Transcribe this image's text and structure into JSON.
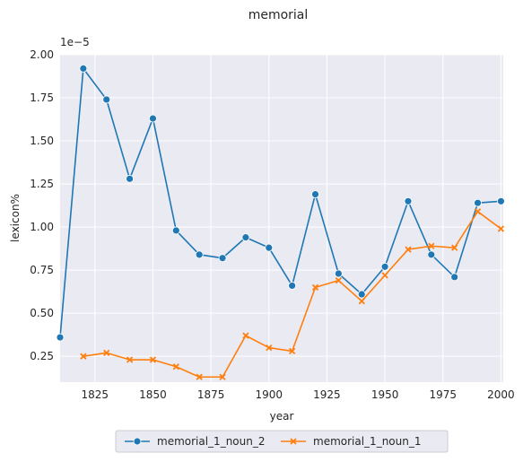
{
  "chart_data": {
    "type": "line",
    "title": "memorial",
    "xlabel": "year",
    "ylabel": "lexicon%",
    "y_offset_text": "1e−5",
    "xlim": [
      1810,
      2001
    ],
    "ylim": [
      0.1,
      2.0
    ],
    "x_ticks": [
      1825,
      1850,
      1875,
      1900,
      1925,
      1950,
      1975,
      2000
    ],
    "y_ticks": [
      0.25,
      0.5,
      0.75,
      1.0,
      1.25,
      1.5,
      1.75,
      2.0
    ],
    "x_tick_labels": [
      "1825",
      "1850",
      "1875",
      "1900",
      "1925",
      "1950",
      "1975",
      "2000"
    ],
    "y_tick_labels": [
      "0.25",
      "0.50",
      "0.75",
      "1.00",
      "1.25",
      "1.50",
      "1.75",
      "2.00"
    ],
    "grid": true,
    "legend_position": "bottom-center",
    "background": "#eaeaf2",
    "series": [
      {
        "name": "memorial_1_noun_2",
        "color": "#1f77b4",
        "marker": "circle",
        "x": [
          1810,
          1820,
          1830,
          1840,
          1850,
          1860,
          1870,
          1880,
          1890,
          1900,
          1910,
          1920,
          1930,
          1940,
          1950,
          1960,
          1970,
          1980,
          1990,
          2000
        ],
        "y": [
          0.36,
          1.92,
          1.74,
          1.28,
          1.63,
          0.98,
          0.84,
          0.82,
          0.94,
          0.88,
          0.66,
          1.19,
          0.73,
          0.61,
          0.77,
          1.15,
          0.84,
          0.71,
          1.14,
          1.15
        ]
      },
      {
        "name": "memorial_1_noun_1",
        "color": "#ff7f0e",
        "marker": "x",
        "x": [
          1820,
          1830,
          1840,
          1850,
          1860,
          1870,
          1880,
          1890,
          1900,
          1910,
          1920,
          1930,
          1940,
          1950,
          1960,
          1970,
          1980,
          1990,
          2000
        ],
        "y": [
          0.25,
          0.27,
          0.23,
          0.23,
          0.19,
          0.13,
          0.13,
          0.37,
          0.3,
          0.28,
          0.65,
          0.69,
          0.57,
          0.72,
          0.87,
          0.89,
          0.88,
          1.09,
          0.99
        ]
      }
    ]
  }
}
